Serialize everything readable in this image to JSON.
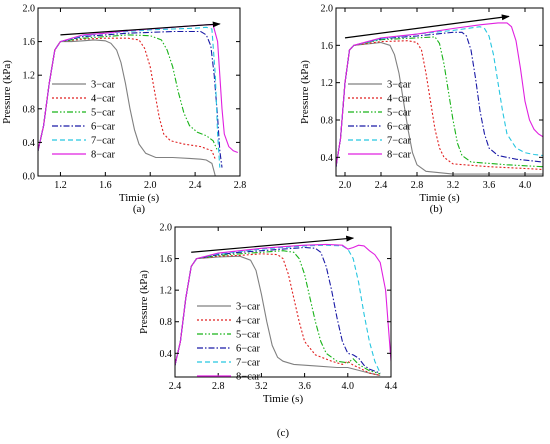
{
  "chart_data": [
    {
      "type": "line",
      "panel_label": "(a)",
      "xlabel": "Timie (s)",
      "ylabel": "Pressure (kPa)",
      "xlim": [
        1.0,
        2.8
      ],
      "ylim": [
        0.0,
        2.0
      ],
      "xticks": [
        "1.2",
        "1.6",
        "2.0",
        "2.4",
        "2.8"
      ],
      "yticks": [
        "0.0",
        "0.4",
        "0.8",
        "1.2",
        "1.6",
        "2.0"
      ],
      "legend_position": "lower-left",
      "arrow": {
        "from": [
          1.2,
          1.68
        ],
        "to": [
          2.62,
          1.81
        ]
      },
      "series": [
        {
          "name": "3−car",
          "color": "#808080",
          "dash": "solid",
          "x": [
            1.0,
            1.05,
            1.1,
            1.15,
            1.2,
            1.3,
            1.4,
            1.5,
            1.6,
            1.65,
            1.7,
            1.74,
            1.78,
            1.82,
            1.86,
            1.9,
            1.96,
            2.05,
            2.2,
            2.35,
            2.45,
            2.5,
            2.55,
            2.57,
            2.58
          ],
          "y": [
            0.3,
            0.6,
            1.1,
            1.5,
            1.6,
            1.6,
            1.61,
            1.62,
            1.61,
            1.58,
            1.5,
            1.35,
            1.1,
            0.8,
            0.55,
            0.38,
            0.27,
            0.22,
            0.22,
            0.21,
            0.2,
            0.19,
            0.15,
            0.05,
            0.0
          ]
        },
        {
          "name": "4−car",
          "color": "#e02020",
          "dash": "2,2",
          "x": [
            1.0,
            1.05,
            1.1,
            1.15,
            1.2,
            1.4,
            1.6,
            1.8,
            1.9,
            1.95,
            2.0,
            2.04,
            2.08,
            2.12,
            2.18,
            2.3,
            2.45,
            2.55,
            2.58
          ],
          "y": [
            0.3,
            0.6,
            1.1,
            1.5,
            1.6,
            1.63,
            1.64,
            1.64,
            1.62,
            1.52,
            1.3,
            1.0,
            0.7,
            0.5,
            0.42,
            0.38,
            0.35,
            0.3,
            0.2
          ]
        },
        {
          "name": "5−car",
          "color": "#19b319",
          "dash": "6,2,1.5,2,1.5,2",
          "x": [
            1.0,
            1.05,
            1.1,
            1.15,
            1.2,
            1.4,
            1.6,
            1.8,
            2.0,
            2.1,
            2.15,
            2.2,
            2.25,
            2.3,
            2.35,
            2.42,
            2.5,
            2.56,
            2.6
          ],
          "y": [
            0.3,
            0.6,
            1.1,
            1.5,
            1.6,
            1.64,
            1.66,
            1.68,
            1.67,
            1.62,
            1.5,
            1.3,
            1.0,
            0.75,
            0.6,
            0.52,
            0.48,
            0.42,
            0.3
          ]
        },
        {
          "name": "6−car",
          "color": "#1a1aa6",
          "dash": "6,2,1.5,2",
          "x": [
            1.0,
            1.05,
            1.1,
            1.15,
            1.2,
            1.4,
            1.6,
            1.8,
            2.0,
            2.2,
            2.35,
            2.45,
            2.5,
            2.54,
            2.57,
            2.6,
            2.62,
            2.64
          ],
          "y": [
            0.3,
            0.6,
            1.1,
            1.5,
            1.6,
            1.66,
            1.68,
            1.7,
            1.71,
            1.72,
            1.72,
            1.72,
            1.68,
            1.55,
            1.2,
            0.7,
            0.3,
            0.1
          ]
        },
        {
          "name": "7−car",
          "color": "#26c6e0",
          "dash": "5,3",
          "x": [
            1.0,
            1.05,
            1.1,
            1.15,
            1.2,
            1.4,
            1.6,
            1.8,
            2.0,
            2.2,
            2.4,
            2.5,
            2.55,
            2.58,
            2.6,
            2.62
          ],
          "y": [
            0.3,
            0.6,
            1.1,
            1.5,
            1.6,
            1.67,
            1.7,
            1.72,
            1.74,
            1.75,
            1.76,
            1.77,
            1.75,
            1.2,
            0.5,
            0.1
          ]
        },
        {
          "name": "8−car",
          "color": "#e020e0",
          "dash": "solid",
          "x": [
            1.0,
            1.05,
            1.1,
            1.15,
            1.2,
            1.4,
            1.6,
            1.8,
            2.0,
            2.2,
            2.4,
            2.5,
            2.56,
            2.6,
            2.62,
            2.64,
            2.66,
            2.7,
            2.74,
            2.78
          ],
          "y": [
            0.3,
            0.6,
            1.1,
            1.5,
            1.6,
            1.68,
            1.7,
            1.73,
            1.75,
            1.77,
            1.79,
            1.8,
            1.8,
            1.6,
            1.2,
            0.8,
            0.5,
            0.35,
            0.3,
            0.28
          ]
        }
      ]
    },
    {
      "type": "line",
      "panel_label": "(b)",
      "xlabel": "Timie (s)",
      "ylabel": "Pressure (kPa)",
      "xlim": [
        1.9,
        4.2
      ],
      "ylim": [
        0.2,
        2.0
      ],
      "xticks": [
        "2.0",
        "2.4",
        "2.8",
        "3.2",
        "3.6",
        "4.0"
      ],
      "yticks": [
        "0.4",
        "0.8",
        "1.2",
        "1.6",
        "2.0"
      ],
      "legend_position": "lower-left",
      "arrow": {
        "from": [
          2.0,
          1.68
        ],
        "to": [
          3.82,
          1.91
        ]
      },
      "series": [
        {
          "name": "3−car",
          "color": "#808080",
          "dash": "solid",
          "x": [
            1.9,
            1.95,
            2.0,
            2.05,
            2.1,
            2.3,
            2.4,
            2.5,
            2.55,
            2.6,
            2.65,
            2.7,
            2.75,
            2.8,
            2.9,
            3.2,
            3.6,
            4.0,
            4.2
          ],
          "y": [
            0.3,
            0.6,
            1.2,
            1.55,
            1.6,
            1.62,
            1.63,
            1.6,
            1.5,
            1.3,
            1.0,
            0.7,
            0.45,
            0.32,
            0.25,
            0.22,
            0.22,
            0.22,
            0.22
          ]
        },
        {
          "name": "4−car",
          "color": "#e02020",
          "dash": "2,2",
          "x": [
            1.9,
            1.95,
            2.0,
            2.05,
            2.1,
            2.4,
            2.7,
            2.8,
            2.85,
            2.9,
            2.95,
            3.0,
            3.05,
            3.1,
            3.2,
            3.6,
            4.0,
            4.2
          ],
          "y": [
            0.3,
            0.6,
            1.2,
            1.55,
            1.6,
            1.64,
            1.65,
            1.63,
            1.55,
            1.3,
            1.0,
            0.7,
            0.5,
            0.4,
            0.33,
            0.3,
            0.28,
            0.27
          ]
        },
        {
          "name": "5−car",
          "color": "#19b319",
          "dash": "6,2,1.5,2,1.5,2",
          "x": [
            1.9,
            1.95,
            2.0,
            2.05,
            2.1,
            2.4,
            2.8,
            3.0,
            3.05,
            3.1,
            3.15,
            3.2,
            3.25,
            3.3,
            3.4,
            3.8,
            4.2
          ],
          "y": [
            0.3,
            0.6,
            1.2,
            1.55,
            1.6,
            1.66,
            1.68,
            1.69,
            1.62,
            1.4,
            1.1,
            0.8,
            0.55,
            0.42,
            0.35,
            0.32,
            0.3
          ]
        },
        {
          "name": "6−car",
          "color": "#1a1aa6",
          "dash": "6,2,1.5,2",
          "x": [
            1.9,
            1.95,
            2.0,
            2.05,
            2.1,
            2.4,
            2.8,
            3.2,
            3.3,
            3.35,
            3.4,
            3.45,
            3.5,
            3.55,
            3.6,
            3.7,
            3.9,
            4.2
          ],
          "y": [
            0.3,
            0.6,
            1.2,
            1.55,
            1.6,
            1.67,
            1.7,
            1.74,
            1.74,
            1.7,
            1.55,
            1.25,
            0.9,
            0.65,
            0.5,
            0.42,
            0.38,
            0.35
          ]
        },
        {
          "name": "7−car",
          "color": "#26c6e0",
          "dash": "5,3",
          "x": [
            1.9,
            1.95,
            2.0,
            2.05,
            2.1,
            2.4,
            2.8,
            3.2,
            3.5,
            3.55,
            3.6,
            3.65,
            3.7,
            3.75,
            3.8,
            3.9,
            4.0,
            4.1,
            4.2
          ],
          "y": [
            0.3,
            0.6,
            1.2,
            1.55,
            1.6,
            1.67,
            1.72,
            1.76,
            1.8,
            1.78,
            1.7,
            1.5,
            1.2,
            0.9,
            0.65,
            0.5,
            0.45,
            0.43,
            0.42
          ]
        },
        {
          "name": "8−car",
          "color": "#e020e0",
          "dash": "solid",
          "x": [
            1.9,
            1.95,
            2.0,
            2.05,
            2.1,
            2.4,
            2.8,
            3.2,
            3.5,
            3.7,
            3.8,
            3.85,
            3.9,
            3.95,
            4.0,
            4.05,
            4.1,
            4.15,
            4.2
          ],
          "y": [
            0.3,
            0.6,
            1.2,
            1.55,
            1.6,
            1.68,
            1.72,
            1.78,
            1.82,
            1.84,
            1.84,
            1.8,
            1.65,
            1.35,
            1.0,
            0.8,
            0.7,
            0.65,
            0.62
          ]
        }
      ]
    },
    {
      "type": "line",
      "panel_label": "(c)",
      "xlabel": "Timie (s)",
      "ylabel": "Pressure (kPa)",
      "xlim": [
        2.4,
        4.4
      ],
      "ylim": [
        0.1,
        2.0
      ],
      "xticks": [
        "2.4",
        "2.8",
        "3.2",
        "3.6",
        "4.0",
        "4.4"
      ],
      "yticks": [
        "0.4",
        "0.8",
        "1.2",
        "1.6",
        "2.0"
      ],
      "legend_position": "lower-left",
      "arrow": {
        "from": [
          2.55,
          1.68
        ],
        "to": [
          4.05,
          1.86
        ]
      },
      "series": [
        {
          "name": "3−car",
          "color": "#808080",
          "dash": "solid",
          "x": [
            2.4,
            2.45,
            2.5,
            2.55,
            2.6,
            2.7,
            2.8,
            3.0,
            3.1,
            3.15,
            3.2,
            3.25,
            3.3,
            3.35,
            3.4,
            3.5,
            3.7,
            3.9,
            4.0,
            4.2,
            4.3
          ],
          "y": [
            0.25,
            0.55,
            1.1,
            1.5,
            1.6,
            1.61,
            1.62,
            1.63,
            1.58,
            1.45,
            1.15,
            0.8,
            0.5,
            0.35,
            0.3,
            0.26,
            0.24,
            0.22,
            0.22,
            0.15,
            0.12
          ]
        },
        {
          "name": "4−car",
          "color": "#e02020",
          "dash": "2,2",
          "x": [
            2.4,
            2.45,
            2.5,
            2.55,
            2.6,
            2.8,
            3.0,
            3.2,
            3.35,
            3.4,
            3.45,
            3.5,
            3.55,
            3.6,
            3.7,
            3.85,
            3.95,
            4.0,
            4.05,
            4.1,
            4.2,
            4.3
          ],
          "y": [
            0.25,
            0.55,
            1.1,
            1.5,
            1.6,
            1.63,
            1.64,
            1.66,
            1.65,
            1.6,
            1.4,
            1.1,
            0.8,
            0.55,
            0.38,
            0.3,
            0.26,
            0.3,
            0.25,
            0.22,
            0.15,
            0.12
          ]
        },
        {
          "name": "5−car",
          "color": "#19b319",
          "dash": "6,2,1.5,2,1.5,2",
          "x": [
            2.4,
            2.45,
            2.5,
            2.55,
            2.6,
            2.8,
            3.0,
            3.2,
            3.4,
            3.5,
            3.55,
            3.6,
            3.65,
            3.7,
            3.75,
            3.8,
            3.9,
            4.0,
            4.05,
            4.1,
            4.2,
            4.3
          ],
          "y": [
            0.25,
            0.55,
            1.1,
            1.5,
            1.6,
            1.64,
            1.66,
            1.68,
            1.7,
            1.68,
            1.6,
            1.4,
            1.1,
            0.8,
            0.55,
            0.4,
            0.3,
            0.28,
            0.33,
            0.26,
            0.18,
            0.14
          ]
        },
        {
          "name": "6−car",
          "color": "#1a1aa6",
          "dash": "6,2,1.5,2",
          "x": [
            2.4,
            2.45,
            2.5,
            2.55,
            2.6,
            2.8,
            3.0,
            3.2,
            3.4,
            3.6,
            3.7,
            3.75,
            3.8,
            3.85,
            3.9,
            3.95,
            4.0,
            4.05,
            4.1,
            4.15,
            4.2,
            4.3
          ],
          "y": [
            0.25,
            0.55,
            1.1,
            1.5,
            1.6,
            1.65,
            1.68,
            1.7,
            1.72,
            1.74,
            1.73,
            1.68,
            1.5,
            1.2,
            0.85,
            0.55,
            0.4,
            0.38,
            0.34,
            0.25,
            0.2,
            0.15
          ]
        },
        {
          "name": "7−car",
          "color": "#26c6e0",
          "dash": "5,3",
          "x": [
            2.4,
            2.45,
            2.5,
            2.55,
            2.6,
            2.8,
            3.0,
            3.2,
            3.4,
            3.6,
            3.8,
            3.95,
            4.0,
            4.05,
            4.1,
            4.15,
            4.2,
            4.25,
            4.3
          ],
          "y": [
            0.25,
            0.55,
            1.1,
            1.5,
            1.6,
            1.66,
            1.69,
            1.72,
            1.74,
            1.76,
            1.77,
            1.76,
            1.72,
            1.6,
            1.3,
            0.9,
            0.55,
            0.3,
            0.15
          ]
        },
        {
          "name": "8−car",
          "color": "#e020e0",
          "dash": "solid",
          "x": [
            2.4,
            2.45,
            2.5,
            2.55,
            2.6,
            2.8,
            3.0,
            3.2,
            3.4,
            3.6,
            3.8,
            3.95,
            4.0,
            4.05,
            4.1,
            4.15,
            4.2,
            4.25,
            4.3,
            4.35,
            4.4
          ],
          "y": [
            0.25,
            0.55,
            1.1,
            1.5,
            1.6,
            1.67,
            1.7,
            1.73,
            1.75,
            1.77,
            1.78,
            1.77,
            1.72,
            1.74,
            1.77,
            1.76,
            1.7,
            1.65,
            1.55,
            1.2,
            0.3
          ]
        }
      ]
    }
  ]
}
